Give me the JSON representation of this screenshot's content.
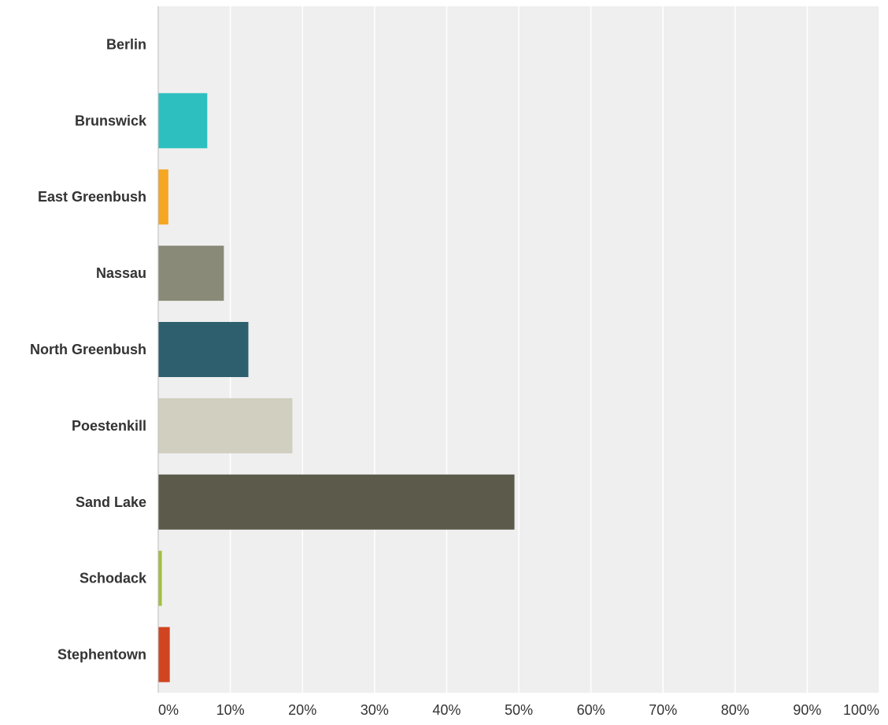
{
  "chart_data": {
    "type": "bar",
    "orientation": "horizontal",
    "categories": [
      "Berlin",
      "Brunswick",
      "East Greenbush",
      "Nassau",
      "North Greenbush",
      "Poestenkill",
      "Sand Lake",
      "Schodack",
      "Stephentown"
    ],
    "values": [
      0,
      6.8,
      1.4,
      9.1,
      12.5,
      18.6,
      49.4,
      0.5,
      1.6
    ],
    "colors": [
      "#2dbfbf",
      "#2dbfbf",
      "#f5a623",
      "#8a8a78",
      "#2e5f6e",
      "#d0cfc0",
      "#5c5a4a",
      "#a2c03c",
      "#d04520"
    ],
    "xlim": [
      0,
      100
    ],
    "x_ticks": [
      "0%",
      "10%",
      "20%",
      "30%",
      "40%",
      "50%",
      "60%",
      "70%",
      "80%",
      "90%",
      "100%"
    ],
    "grid": true,
    "plot_background": "#efefef",
    "title": "",
    "xlabel": "",
    "ylabel": ""
  }
}
